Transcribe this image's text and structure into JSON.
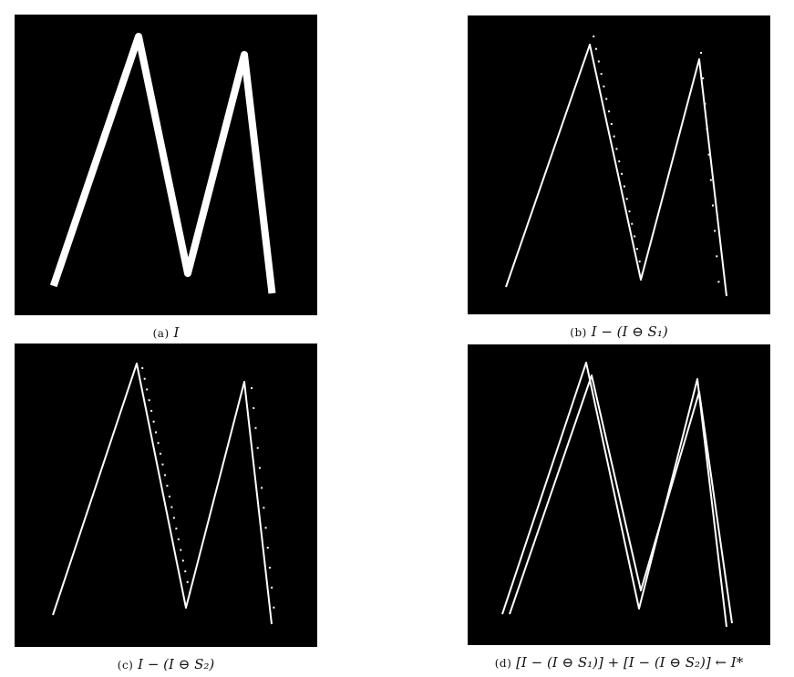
{
  "figure": {
    "panels": [
      {
        "id": "a",
        "tag": "(a)",
        "expr": "I"
      },
      {
        "id": "b",
        "tag": "(b)",
        "expr": "I − (I ⊖ S₁)"
      },
      {
        "id": "c",
        "tag": "(c)",
        "expr": "I − (I ⊖ S₂)"
      },
      {
        "id": "d",
        "tag": "(d)",
        "expr": "[I − (I ⊖ S₁)] + [I − (I ⊖ S₂)] ← I*"
      }
    ]
  }
}
